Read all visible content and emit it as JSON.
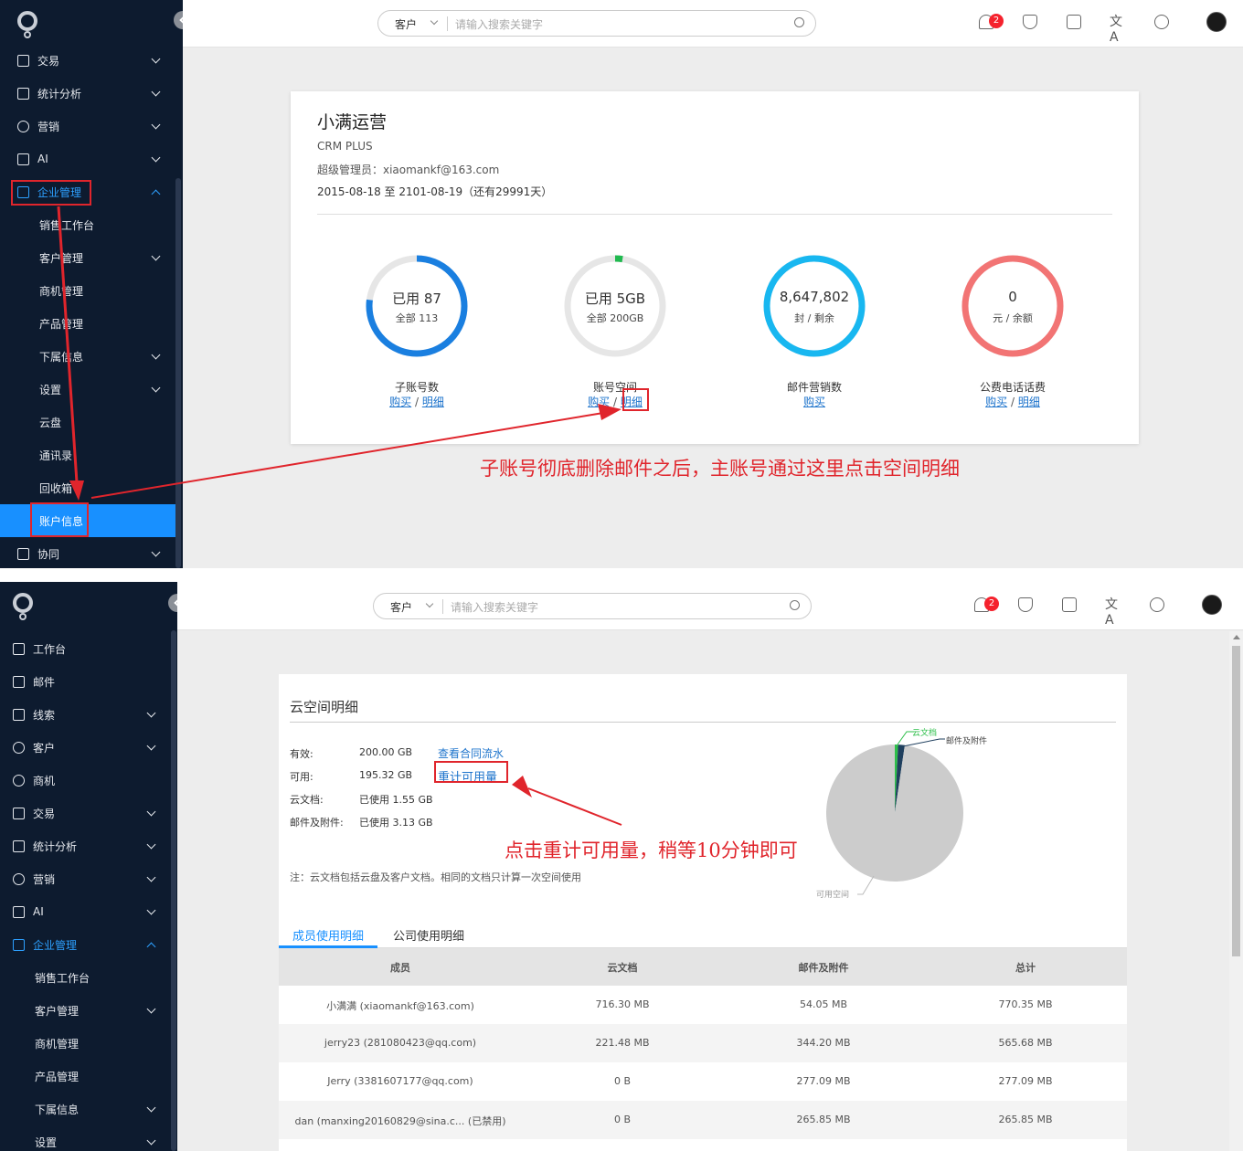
{
  "top": {
    "search_scope": "客户",
    "search_placeholder": "请输入搜索关键字",
    "notification_count": "2",
    "icons": [
      "bell-icon",
      "shield-icon",
      "mail-icon",
      "translate-icon",
      "help-icon",
      "avatar"
    ]
  },
  "sidebar1": {
    "items": [
      {
        "label": "交易",
        "icon": "transaction-icon",
        "chevron": true
      },
      {
        "label": "统计分析",
        "icon": "chart-icon",
        "chevron": true
      },
      {
        "label": "营销",
        "icon": "target-icon",
        "chevron": true
      },
      {
        "label": "AI",
        "icon": "ai-icon",
        "chevron": true
      },
      {
        "label": "企业管理",
        "icon": "org-icon",
        "open": true
      },
      {
        "label": "销售工作台",
        "sub": true
      },
      {
        "label": "客户管理",
        "sub": true,
        "chevron": true
      },
      {
        "label": "商机管理",
        "sub": true
      },
      {
        "label": "产品管理",
        "sub": true
      },
      {
        "label": "下属信息",
        "sub": true,
        "chevron": true
      },
      {
        "label": "设置",
        "sub": true,
        "chevron": true
      },
      {
        "label": "云盘",
        "sub": true
      },
      {
        "label": "通讯录",
        "sub": true
      },
      {
        "label": "回收箱",
        "sub": true
      },
      {
        "label": "账户信息",
        "sub": true,
        "active": true
      },
      {
        "label": "协同",
        "icon": "handshake-icon",
        "chevron": true
      }
    ]
  },
  "account": {
    "name": "小满运营",
    "plan": "CRM PLUS",
    "admin": "超级管理员：xiaomankf@163.com",
    "period": "2015-08-18 至 2101-08-19（还有29991天）",
    "stats": [
      {
        "line1": "已用 87",
        "line2": "全部 113",
        "label": "子账号数",
        "links": [
          "购买",
          "明细"
        ],
        "color": "#1a7fe0",
        "fraction": 0.77
      },
      {
        "line1": "已用 5GB",
        "line2": "全部 200GB",
        "label": "账号空间",
        "links": [
          "购买",
          "明细"
        ],
        "color": "#20b94f",
        "fraction": 0.025
      },
      {
        "line1": "8,647,802",
        "line2": "封 / 剩余",
        "label": "邮件营销数",
        "links": [
          "购买"
        ],
        "color": "#18b7f0",
        "fraction": 1
      },
      {
        "line1": "0",
        "line2": "元 / 余额",
        "label": "公费电话话费",
        "links": [
          "购买",
          "明细"
        ],
        "color": "#f27474",
        "fraction": 1
      }
    ],
    "annotation": "子账号彻底删除邮件之后，主账号通过这里点击空间明细"
  },
  "sidebar2": {
    "items": [
      {
        "label": "工作台",
        "icon": "dashboard-icon"
      },
      {
        "label": "邮件",
        "icon": "mail-icon"
      },
      {
        "label": "线索",
        "icon": "leads-icon",
        "chevron": true
      },
      {
        "label": "客户",
        "icon": "customer-icon",
        "chevron": true
      },
      {
        "label": "商机",
        "icon": "opportunity-icon"
      },
      {
        "label": "交易",
        "icon": "transaction-icon",
        "chevron": true
      },
      {
        "label": "统计分析",
        "icon": "chart-icon",
        "chevron": true
      },
      {
        "label": "营销",
        "icon": "target-icon",
        "chevron": true
      },
      {
        "label": "AI",
        "icon": "ai-icon",
        "chevron": true
      },
      {
        "label": "企业管理",
        "icon": "org-icon",
        "open": true
      },
      {
        "label": "销售工作台",
        "sub": true
      },
      {
        "label": "客户管理",
        "sub": true,
        "chevron": true
      },
      {
        "label": "商机管理",
        "sub": true
      },
      {
        "label": "产品管理",
        "sub": true
      },
      {
        "label": "下属信息",
        "sub": true,
        "chevron": true
      },
      {
        "label": "设置",
        "sub": true,
        "chevron": true
      }
    ]
  },
  "space": {
    "title": "云空间明细",
    "rows": [
      {
        "k": "有效:",
        "v": "200.00 GB"
      },
      {
        "k": "可用:",
        "v": "195.32 GB"
      },
      {
        "k": "云文档:",
        "v": "已使用 1.55 GB"
      },
      {
        "k": "邮件及附件:",
        "v": "已使用 3.13 GB"
      }
    ],
    "link_flow": "查看合同流水",
    "link_recount": "重计可用量",
    "note": "注：云文档包括云盘及客户文档。相同的文档只计算一次空间使用",
    "annotation": "点击重计可用量，稍等10分钟即可",
    "tabs": [
      "成员使用明细",
      "公司使用明细"
    ],
    "columns": [
      "成员",
      "云文档",
      "邮件及附件",
      "总计"
    ],
    "table": [
      [
        "小满满 (xiaomankf@163.com)",
        "716.30 MB",
        "54.05 MB",
        "770.35 MB"
      ],
      [
        "jerry23 (281080423@qq.com)",
        "221.48 MB",
        "344.20 MB",
        "565.68 MB"
      ],
      [
        "Jerry (3381607177@qq.com)",
        "0 B",
        "277.09 MB",
        "277.09 MB"
      ],
      [
        "dan (manxing20160829@sina.c... (已禁用)",
        "0 B",
        "265.85 MB",
        "265.85 MB"
      ]
    ]
  },
  "chart_data": {
    "type": "pie",
    "labels": [
      "云文档",
      "邮件及附件",
      "可用空间"
    ],
    "values": [
      1.55,
      3.13,
      195.32
    ],
    "colors": [
      "#2dbf4a",
      "#1f3f5e",
      "#cccccc"
    ]
  }
}
